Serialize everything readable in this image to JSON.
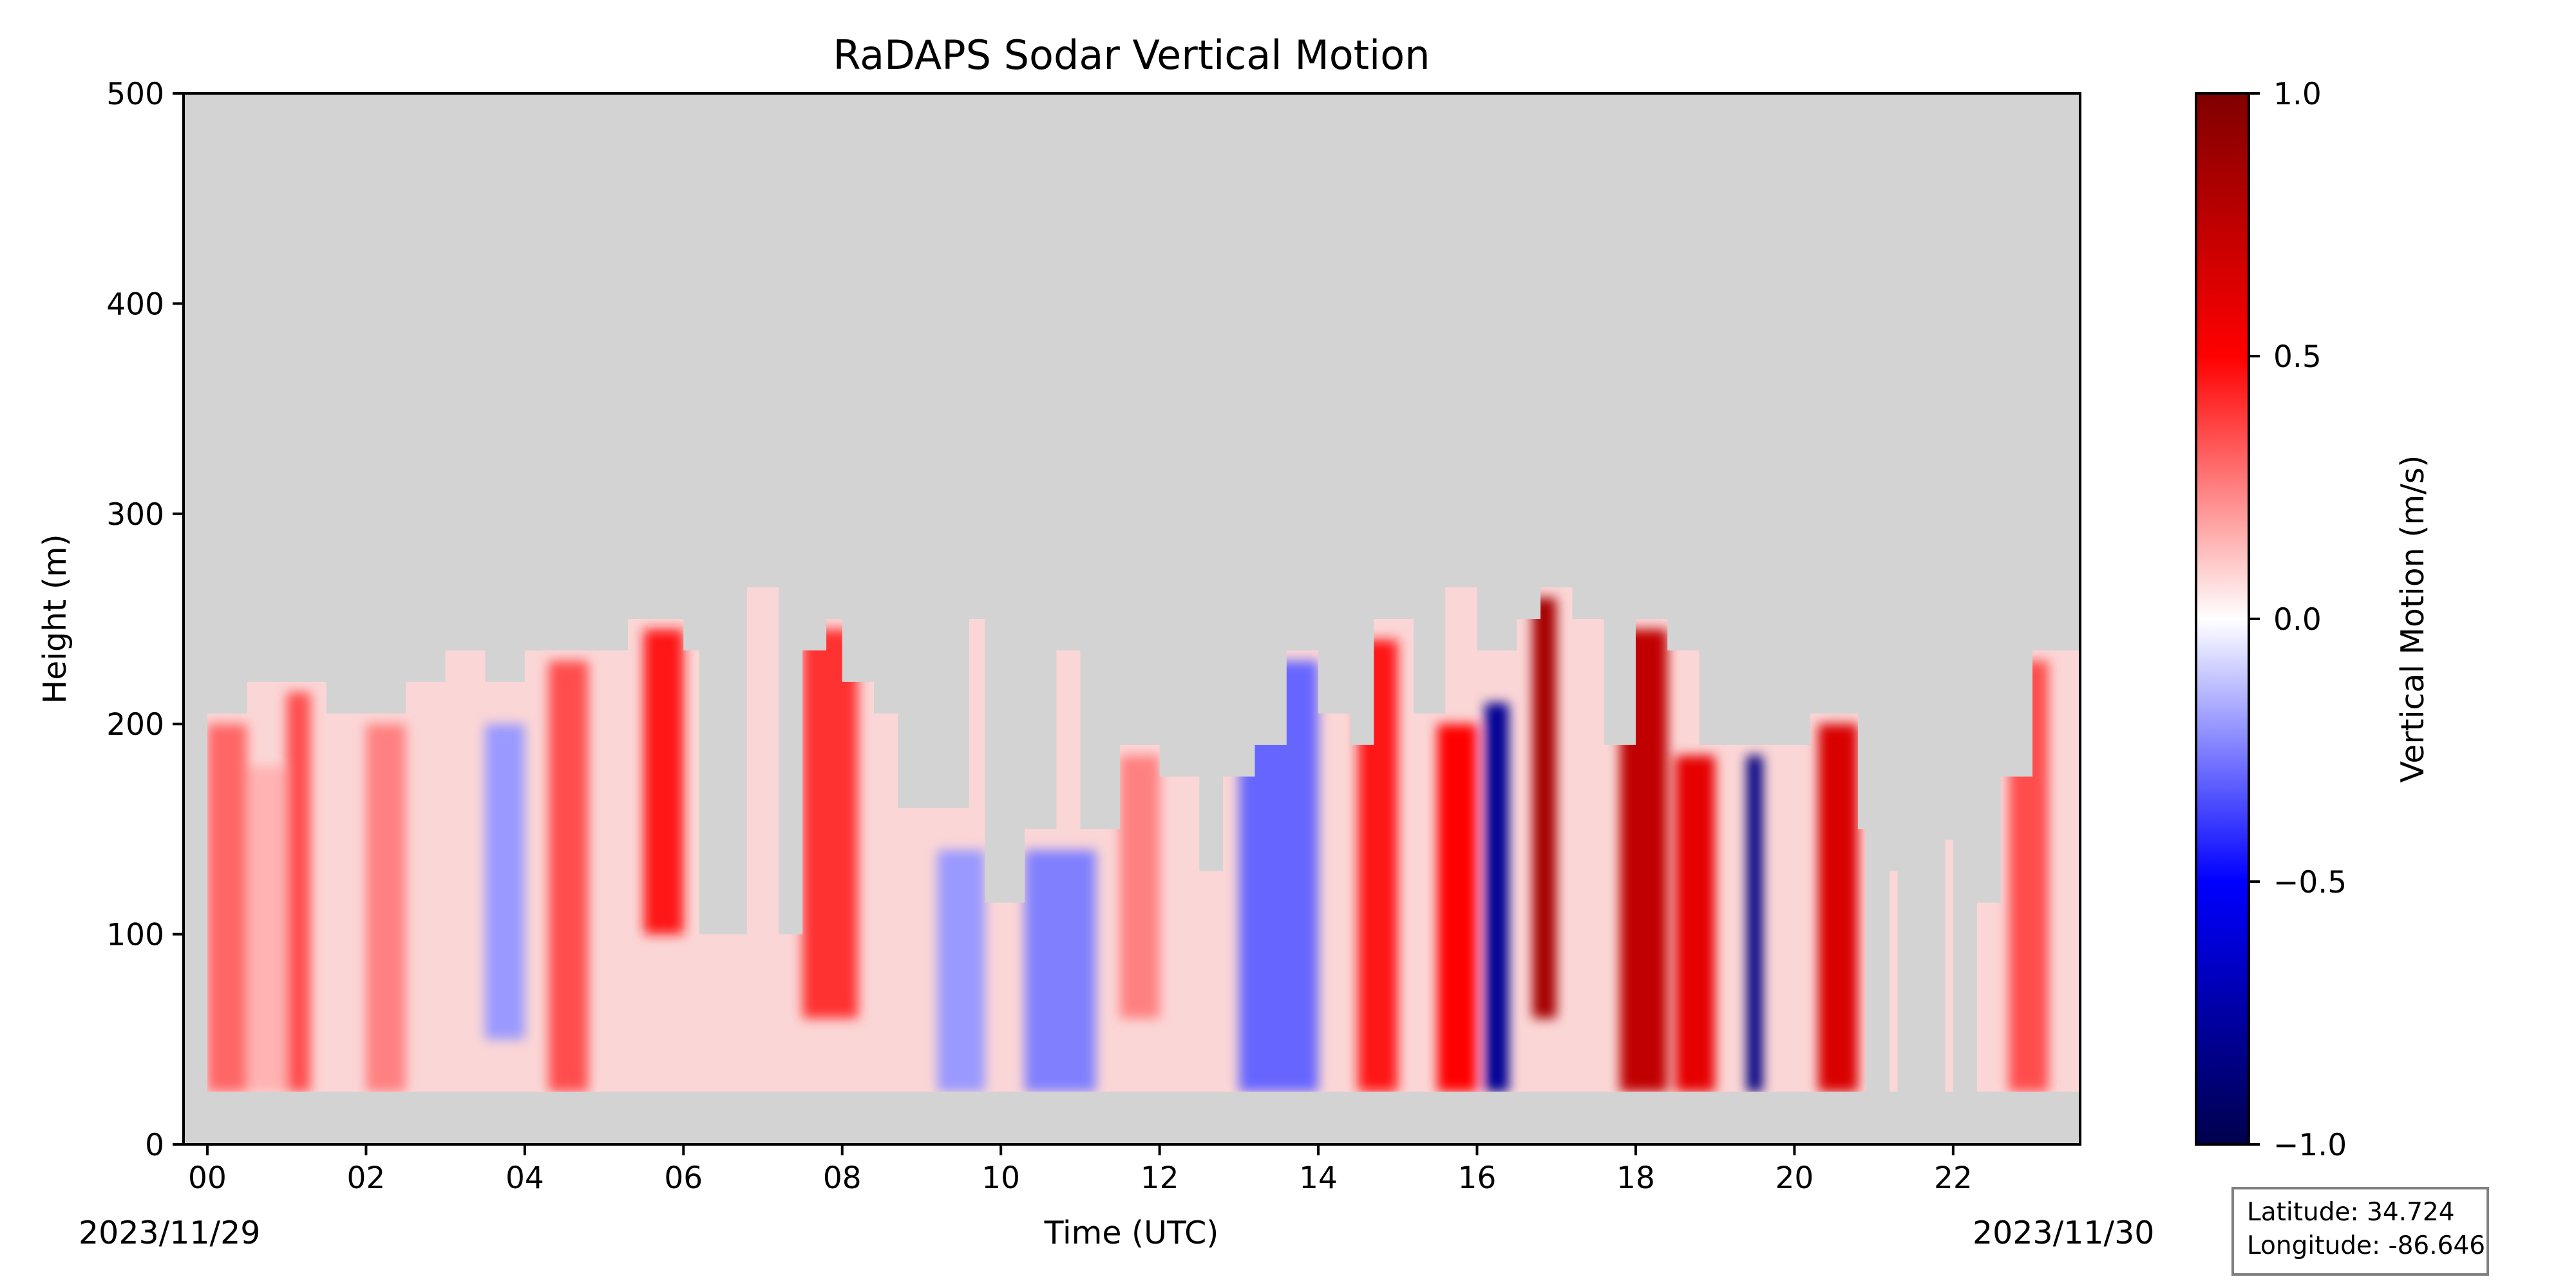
{
  "chart_data": {
    "type": "heatmap",
    "title": "RaDAPS Sodar Vertical Motion",
    "xlabel": "Time (UTC)",
    "ylabel": "Height (m)",
    "x_tick_labels": [
      "00",
      "02",
      "04",
      "06",
      "08",
      "10",
      "12",
      "14",
      "16",
      "18",
      "20",
      "22"
    ],
    "x_ticks_hours": [
      0,
      2,
      4,
      6,
      8,
      10,
      12,
      14,
      16,
      18,
      20,
      22
    ],
    "xlim_hours": [
      -0.3,
      23.6
    ],
    "y_ticks": [
      0,
      100,
      200,
      300,
      400,
      500
    ],
    "ylim": [
      0,
      500
    ],
    "start_date": "2023/11/29",
    "end_date": "2023/11/30",
    "colorbar": {
      "label": "Vertical Motion (m/s)",
      "range": [
        -1.0,
        1.0
      ],
      "tick_values": [
        1.0,
        0.5,
        0.0,
        -0.5,
        -1.0
      ],
      "tick_labels": [
        "1.0",
        "0.5",
        "0.0",
        "−0.5",
        "−1.0"
      ],
      "colormap": "seismic"
    },
    "min_height_m": 25,
    "max_height_profile": [
      [
        0.0,
        205
      ],
      [
        0.5,
        220
      ],
      [
        1.5,
        205
      ],
      [
        2.0,
        205
      ],
      [
        2.5,
        220
      ],
      [
        3.0,
        235
      ],
      [
        3.5,
        220
      ],
      [
        4.0,
        235
      ],
      [
        4.5,
        235
      ],
      [
        5.0,
        235
      ],
      [
        5.3,
        250
      ],
      [
        5.6,
        250
      ],
      [
        6.0,
        235
      ],
      [
        6.2,
        100
      ],
      [
        6.6,
        100
      ],
      [
        6.8,
        265
      ],
      [
        7.2,
        100
      ],
      [
        7.5,
        235
      ],
      [
        7.8,
        250
      ],
      [
        8.0,
        220
      ],
      [
        8.4,
        205
      ],
      [
        8.7,
        160
      ],
      [
        9.3,
        160
      ],
      [
        9.6,
        250
      ],
      [
        9.8,
        115
      ],
      [
        10.3,
        150
      ],
      [
        10.7,
        235
      ],
      [
        11.0,
        150
      ],
      [
        11.5,
        190
      ],
      [
        12.0,
        175
      ],
      [
        12.5,
        130
      ],
      [
        12.8,
        175
      ],
      [
        13.2,
        190
      ],
      [
        13.6,
        235
      ],
      [
        14.0,
        205
      ],
      [
        14.4,
        190
      ],
      [
        14.7,
        250
      ],
      [
        15.2,
        205
      ],
      [
        15.6,
        265
      ],
      [
        16.0,
        235
      ],
      [
        16.5,
        250
      ],
      [
        16.8,
        265
      ],
      [
        17.2,
        250
      ],
      [
        17.6,
        190
      ],
      [
        18.0,
        250
      ],
      [
        18.4,
        235
      ],
      [
        18.8,
        190
      ],
      [
        19.3,
        190
      ],
      [
        19.7,
        190
      ],
      [
        20.2,
        205
      ],
      [
        20.5,
        205
      ],
      [
        20.8,
        150
      ],
      [
        20.9,
        0
      ],
      [
        21.2,
        130
      ],
      [
        21.3,
        0
      ],
      [
        21.9,
        145
      ],
      [
        22.0,
        0
      ],
      [
        22.3,
        115
      ],
      [
        22.6,
        175
      ],
      [
        23.0,
        235
      ],
      [
        23.3,
        235
      ],
      [
        23.6,
        235
      ]
    ],
    "vertical_motion_features": [
      {
        "hours": [
          0.0,
          0.5
        ],
        "heights": [
          25,
          200
        ],
        "value": 0.3
      },
      {
        "hours": [
          0.5,
          1.0
        ],
        "heights": [
          25,
          180
        ],
        "value": 0.15
      },
      {
        "hours": [
          1.0,
          1.3
        ],
        "heights": [
          25,
          215
        ],
        "value": 0.35
      },
      {
        "hours": [
          2.0,
          2.5
        ],
        "heights": [
          25,
          200
        ],
        "value": 0.25
      },
      {
        "hours": [
          3.5,
          4.0
        ],
        "heights": [
          50,
          200
        ],
        "value": -0.2
      },
      {
        "hours": [
          4.3,
          4.8
        ],
        "heights": [
          25,
          230
        ],
        "value": 0.35
      },
      {
        "hours": [
          5.5,
          6.0
        ],
        "heights": [
          100,
          245
        ],
        "value": 0.45
      },
      {
        "hours": [
          7.5,
          8.2
        ],
        "heights": [
          60,
          245
        ],
        "value": 0.4
      },
      {
        "hours": [
          9.2,
          9.8
        ],
        "heights": [
          25,
          140
        ],
        "value": -0.2
      },
      {
        "hours": [
          10.3,
          11.2
        ],
        "heights": [
          25,
          140
        ],
        "value": -0.25
      },
      {
        "hours": [
          11.5,
          12.0
        ],
        "heights": [
          60,
          185
        ],
        "value": 0.25
      },
      {
        "hours": [
          13.0,
          14.0
        ],
        "heights": [
          25,
          230
        ],
        "value": -0.3
      },
      {
        "hours": [
          14.5,
          15.0
        ],
        "heights": [
          25,
          240
        ],
        "value": 0.45
      },
      {
        "hours": [
          15.5,
          16.0
        ],
        "heights": [
          25,
          200
        ],
        "value": 0.5
      },
      {
        "hours": [
          16.1,
          16.4
        ],
        "heights": [
          25,
          210
        ],
        "value": -0.8
      },
      {
        "hours": [
          16.7,
          17.0
        ],
        "heights": [
          60,
          260
        ],
        "value": 0.85
      },
      {
        "hours": [
          17.8,
          18.4
        ],
        "heights": [
          25,
          245
        ],
        "value": 0.75
      },
      {
        "hours": [
          18.5,
          19.0
        ],
        "heights": [
          25,
          185
        ],
        "value": 0.6
      },
      {
        "hours": [
          19.4,
          19.6
        ],
        "heights": [
          25,
          185
        ],
        "value": -0.85
      },
      {
        "hours": [
          20.3,
          20.8
        ],
        "heights": [
          25,
          200
        ],
        "value": 0.65
      },
      {
        "hours": [
          22.7,
          23.2
        ],
        "heights": [
          25,
          230
        ],
        "value": 0.35
      }
    ]
  },
  "location_box": {
    "latitude_text": "Latitude: 34.724",
    "longitude_text": "Longitude: -86.646"
  }
}
